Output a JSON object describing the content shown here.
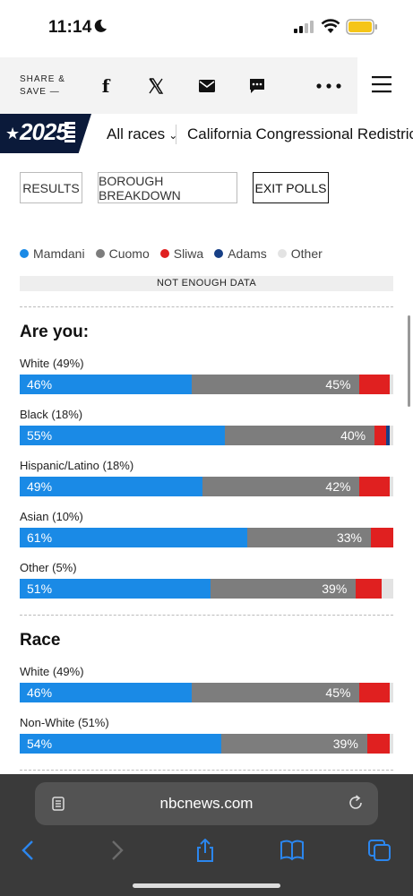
{
  "status": {
    "time": "11:14"
  },
  "topbar": {
    "share_label": "SHARE & SAVE —"
  },
  "racenav": {
    "logo_text": "2025",
    "all_races": "All races",
    "current_race": "California Congressional Redistricting"
  },
  "tabs": [
    {
      "label": "RESULTS",
      "active": false
    },
    {
      "label": "BOROUGH BREAKDOWN",
      "active": false
    },
    {
      "label": "EXIT POLLS",
      "active": true
    }
  ],
  "legend": [
    {
      "label": "Mamdani",
      "color": "#1a8ae6"
    },
    {
      "label": "Cuomo",
      "color": "#7d7d7d"
    },
    {
      "label": "Sliwa",
      "color": "#e02020"
    },
    {
      "label": "Adams",
      "color": "#173f86"
    },
    {
      "label": "Other",
      "color": "#e3e3e3"
    }
  ],
  "not_enough_data": "NOT ENOUGH DATA",
  "sections": [
    {
      "title": "Are you:",
      "rows": [
        {
          "label": "White (49%)",
          "mamdani": 46,
          "cuomo": 45,
          "sliwa": 8,
          "adams": 0,
          "mamdani_label": "46%",
          "cuomo_label": "45%"
        },
        {
          "label": "Black (18%)",
          "mamdani": 55,
          "cuomo": 40,
          "sliwa": 3,
          "adams": 1,
          "mamdani_label": "55%",
          "cuomo_label": "40%"
        },
        {
          "label": "Hispanic/Latino (18%)",
          "mamdani": 49,
          "cuomo": 42,
          "sliwa": 8,
          "adams": 0,
          "mamdani_label": "49%",
          "cuomo_label": "42%"
        },
        {
          "label": "Asian (10%)",
          "mamdani": 61,
          "cuomo": 33,
          "sliwa": 6,
          "adams": 0,
          "mamdani_label": "61%",
          "cuomo_label": "33%"
        },
        {
          "label": "Other (5%)",
          "mamdani": 51,
          "cuomo": 39,
          "sliwa": 7,
          "adams": 0,
          "mamdani_label": "51%",
          "cuomo_label": "39%"
        }
      ]
    },
    {
      "title": "Race",
      "rows": [
        {
          "label": "White (49%)",
          "mamdani": 46,
          "cuomo": 45,
          "sliwa": 8,
          "adams": 0,
          "mamdani_label": "46%",
          "cuomo_label": "45%"
        },
        {
          "label": "Non-White (51%)",
          "mamdani": 54,
          "cuomo": 39,
          "sliwa": 6,
          "adams": 0,
          "mamdani_label": "54%",
          "cuomo_label": "39%"
        }
      ]
    }
  ],
  "browser": {
    "url": "nbcnews.com"
  }
}
